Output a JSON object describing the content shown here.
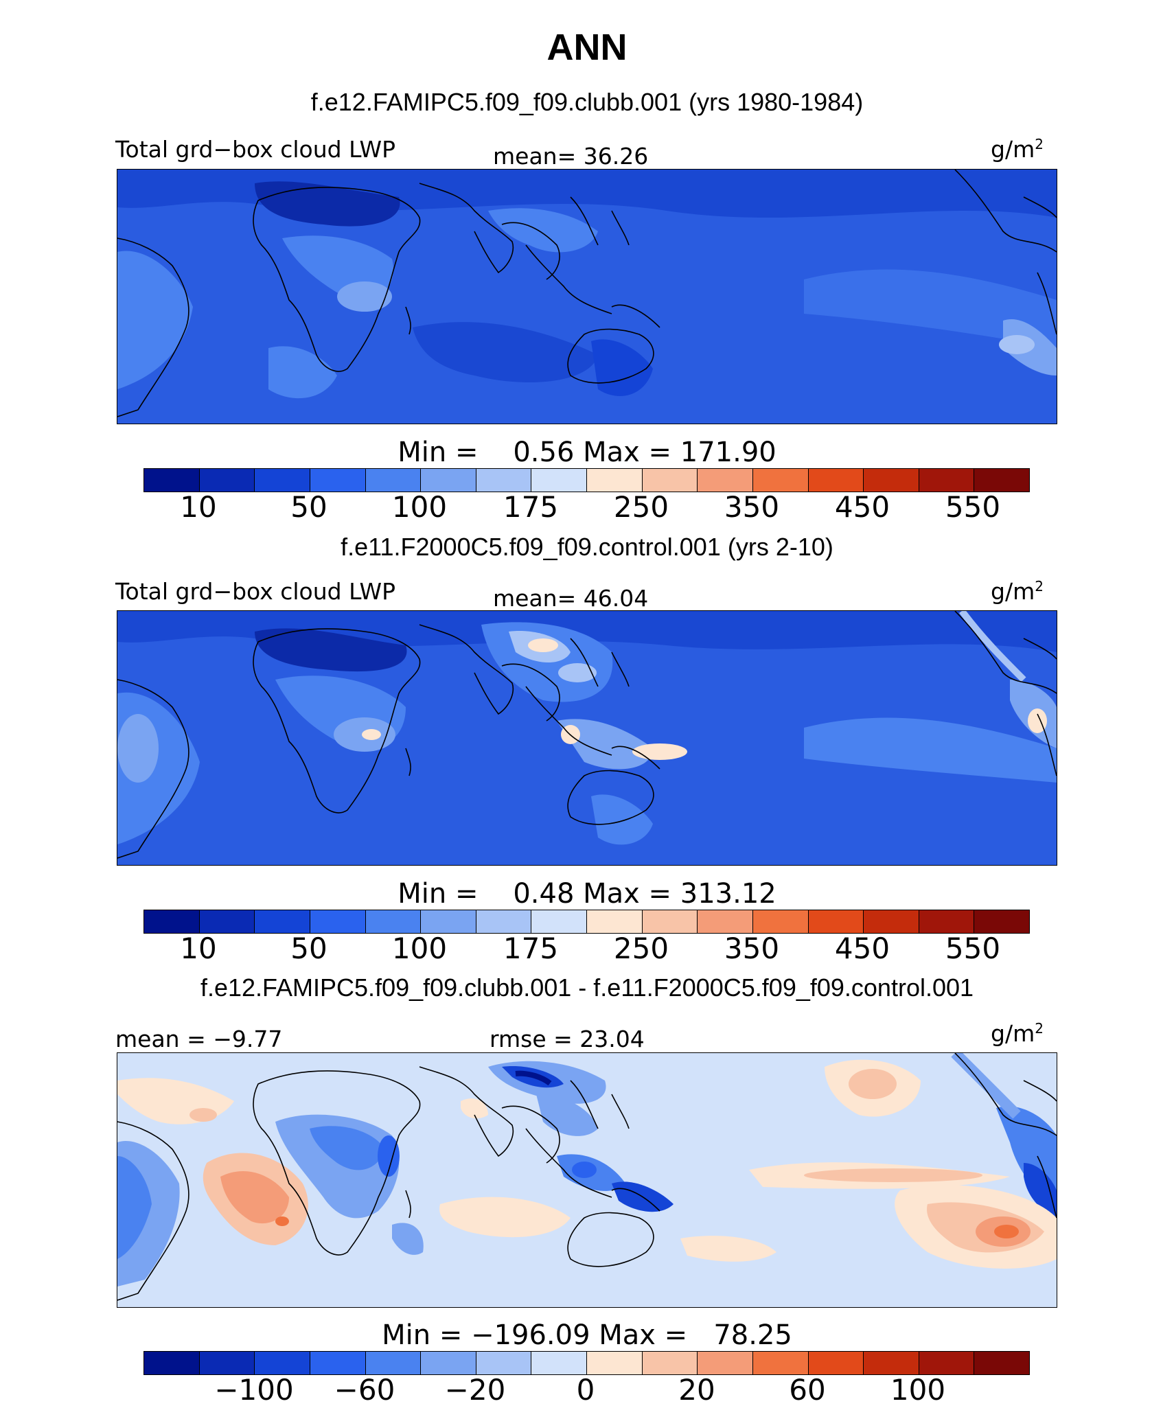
{
  "title": "ANN",
  "panels": [
    {
      "subtitle": "f.e12.FAMIPC5.f09_f09.clubb.001 (yrs 1980-1984)",
      "left_label": "Total grd−box cloud LWP",
      "center_label": "mean=  36.26",
      "units": "g/m",
      "units_sup": "2",
      "minmax": "Min =    0.56 Max = 171.90",
      "colorbar_ticks": [
        "10",
        "50",
        "100",
        "175",
        "250",
        "350",
        "450",
        "550"
      ]
    },
    {
      "subtitle": "f.e11.F2000C5.f09_f09.control.001 (yrs 2-10)",
      "left_label": "Total grd−box cloud LWP",
      "center_label": "mean=  46.04",
      "units": "g/m",
      "units_sup": "2",
      "minmax": "Min =    0.48 Max = 313.12",
      "colorbar_ticks": [
        "10",
        "50",
        "100",
        "175",
        "250",
        "350",
        "450",
        "550"
      ]
    },
    {
      "subtitle": "f.e12.FAMIPC5.f09_f09.clubb.001 - f.e11.F2000C5.f09_f09.control.001",
      "left_label": "mean =  −9.77",
      "center_label": "rmse =  23.04",
      "units": "g/m",
      "units_sup": "2",
      "minmax": "Min = −196.09 Max =   78.25",
      "colorbar_ticks": [
        "−100",
        "−60",
        "−20",
        "0",
        "20",
        "60",
        "100"
      ]
    }
  ],
  "colorbar_colors": [
    "#00128c",
    "#0a2ab4",
    "#1444d6",
    "#2a62ee",
    "#4a82f0",
    "#7aa4f2",
    "#a8c4f6",
    "#d2e2fa",
    "#fde6d2",
    "#f8c4a8",
    "#f49c78",
    "#f0723e",
    "#e24a1a",
    "#c42c0c",
    "#a0160a",
    "#7a0806"
  ]
}
